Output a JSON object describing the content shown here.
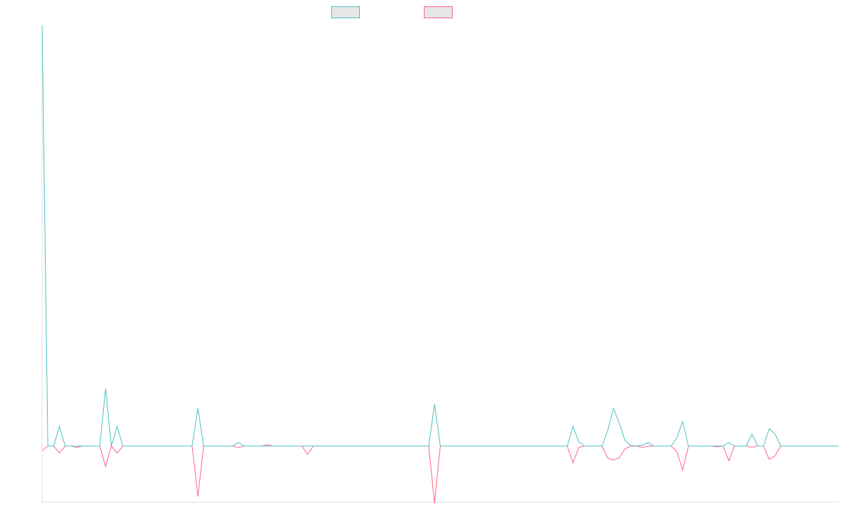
{
  "chart_data": {
    "type": "line",
    "ylim": [
      -80,
      600
    ],
    "legend": "top",
    "series": [
      {
        "color": "#4bc0c0",
        "values": [
          600,
          0,
          0,
          28,
          0,
          0,
          0,
          0,
          0,
          0,
          0,
          82,
          0,
          28,
          0,
          0,
          0,
          0,
          0,
          0,
          0,
          0,
          0,
          0,
          0,
          0,
          0,
          54,
          0,
          0,
          0,
          0,
          0,
          0,
          5,
          0,
          0,
          0,
          0,
          0,
          0,
          0,
          0,
          0,
          0,
          0,
          0,
          0,
          0,
          0,
          0,
          0,
          0,
          0,
          0,
          0,
          0,
          0,
          0,
          0,
          0,
          0,
          0,
          0,
          0,
          0,
          0,
          0,
          60,
          0,
          0,
          0,
          0,
          0,
          0,
          0,
          0,
          0,
          0,
          0,
          0,
          0,
          0,
          0,
          0,
          0,
          0,
          0,
          0,
          0,
          0,
          0,
          28,
          6,
          0,
          0,
          0,
          0,
          22,
          54,
          33,
          8,
          1,
          0,
          1,
          5,
          0,
          0,
          0,
          0,
          12,
          35,
          0,
          0,
          0,
          0,
          0,
          0,
          0,
          5,
          0,
          0,
          0,
          17,
          0,
          0,
          25,
          17,
          0,
          0,
          0,
          0,
          0,
          0,
          0,
          0,
          0,
          0,
          0
        ]
      },
      {
        "color": "#ff6384",
        "values": [
          -6,
          0,
          0,
          -10,
          0,
          0,
          -2,
          0,
          0,
          0,
          0,
          -29,
          0,
          -10,
          0,
          0,
          0,
          0,
          0,
          0,
          0,
          0,
          0,
          0,
          0,
          0,
          0,
          -72,
          0,
          0,
          0,
          0,
          0,
          0,
          -2,
          0,
          0,
          0,
          0,
          2,
          0,
          0,
          0,
          0,
          0,
          0,
          -12,
          0,
          0,
          0,
          0,
          0,
          0,
          0,
          0,
          0,
          0,
          0,
          0,
          0,
          0,
          0,
          0,
          0,
          0,
          0,
          0,
          0,
          -82,
          0,
          0,
          0,
          0,
          0,
          0,
          0,
          0,
          0,
          0,
          0,
          0,
          0,
          0,
          0,
          0,
          0,
          0,
          0,
          0,
          0,
          0,
          0,
          -24,
          -2,
          0,
          0,
          0,
          0,
          -17,
          -20,
          -17,
          -4,
          0,
          0,
          -2,
          0,
          0,
          0,
          0,
          0,
          -8,
          -34,
          0,
          0,
          0,
          0,
          0,
          -1,
          0,
          -21,
          0,
          0,
          0,
          -2,
          0,
          0,
          -19,
          -14,
          0,
          0,
          0,
          0,
          0,
          0,
          0,
          0,
          0,
          0,
          0
        ]
      }
    ]
  }
}
